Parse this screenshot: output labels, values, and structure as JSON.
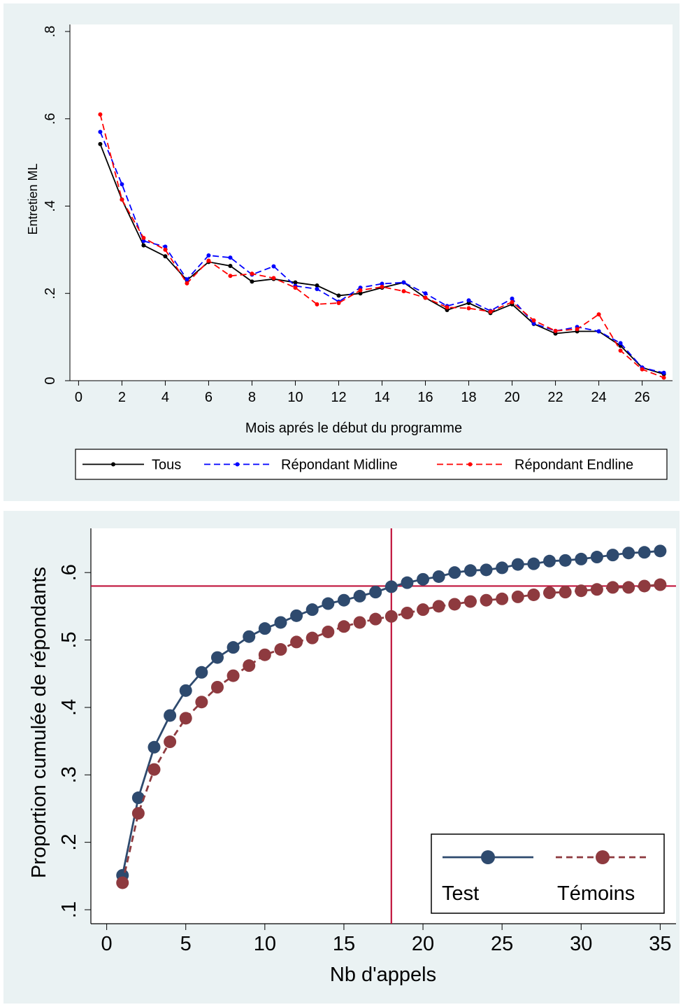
{
  "chart_data": [
    {
      "type": "line",
      "title": "",
      "xlabel": "Mois aprés le début du programme",
      "ylabel": "Entretien ML",
      "xlim": [
        -0.4,
        27.4
      ],
      "ylim": [
        0,
        0.8
      ],
      "xticks": [
        0,
        2,
        4,
        6,
        8,
        10,
        12,
        14,
        16,
        18,
        20,
        22,
        24,
        26
      ],
      "xtick_labels": [
        "0",
        "2",
        "4",
        "6",
        "8",
        "10",
        "12",
        "14",
        "16",
        "18",
        "20",
        "22",
        "24",
        "26"
      ],
      "yticks": [
        0,
        0.2,
        0.4,
        0.6,
        0.8
      ],
      "ytick_labels": [
        "0",
        ".2",
        ".4",
        ".6",
        ".8"
      ],
      "grid": false,
      "legend_position": "bottom",
      "x": [
        1,
        2,
        3,
        4,
        5,
        6,
        7,
        8,
        9,
        10,
        11,
        12,
        13,
        14,
        15,
        16,
        17,
        18,
        19,
        20,
        21,
        22,
        23,
        24,
        25,
        26,
        27
      ],
      "series": [
        {
          "name": "Tous",
          "color": "#000000",
          "dash": "solid",
          "values": [
            0.542,
            0.415,
            0.31,
            0.285,
            0.23,
            0.272,
            0.263,
            0.227,
            0.233,
            0.225,
            0.218,
            0.195,
            0.2,
            0.213,
            0.225,
            0.19,
            0.162,
            0.178,
            0.155,
            0.175,
            0.13,
            0.108,
            0.113,
            0.113,
            0.08,
            0.03,
            0.015
          ]
        },
        {
          "name": "Répondant Midline",
          "color": "#0000ff",
          "dash": "dashed",
          "values": [
            0.57,
            0.45,
            0.32,
            0.307,
            0.232,
            0.287,
            0.282,
            0.243,
            0.262,
            0.217,
            0.21,
            0.181,
            0.213,
            0.222,
            0.225,
            0.2,
            0.171,
            0.184,
            0.16,
            0.188,
            0.131,
            0.114,
            0.123,
            0.113,
            0.086,
            0.03,
            0.018
          ]
        },
        {
          "name": "Répondant Endline",
          "color": "#ff0000",
          "dash": "dashed",
          "values": [
            0.61,
            0.415,
            0.327,
            0.3,
            0.223,
            0.275,
            0.24,
            0.245,
            0.235,
            0.213,
            0.175,
            0.178,
            0.207,
            0.215,
            0.205,
            0.19,
            0.168,
            0.166,
            0.158,
            0.18,
            0.138,
            0.114,
            0.118,
            0.152,
            0.069,
            0.026,
            0.007
          ]
        }
      ]
    },
    {
      "type": "line",
      "title": "",
      "xlabel": "Nb d'appels",
      "ylabel": "Proportion cumulée de répondants",
      "xlim": [
        -1,
        36
      ],
      "ylim": [
        0.1,
        0.65
      ],
      "xticks": [
        0,
        5,
        10,
        15,
        20,
        25,
        30,
        35
      ],
      "xtick_labels": [
        "0",
        "5",
        "10",
        "15",
        "20",
        "25",
        "30",
        "35"
      ],
      "yticks": [
        0.1,
        0.2,
        0.3,
        0.4,
        0.5,
        0.6
      ],
      "ytick_labels": [
        ".1",
        ".2",
        ".3",
        ".4",
        ".5",
        ".6"
      ],
      "grid": false,
      "legend_position": "bottom-right",
      "reference_lines": {
        "x": 18,
        "y": 0.58,
        "color": "#c0143c"
      },
      "x": [
        1,
        2,
        3,
        4,
        5,
        6,
        7,
        8,
        9,
        10,
        11,
        12,
        13,
        14,
        15,
        16,
        17,
        18,
        19,
        20,
        21,
        22,
        23,
        24,
        25,
        26,
        27,
        28,
        29,
        30,
        31,
        32,
        33,
        34,
        35
      ],
      "series": [
        {
          "name": "Test",
          "color": "#2e4a6e",
          "dash": "solid",
          "values": [
            0.151,
            0.266,
            0.341,
            0.388,
            0.425,
            0.452,
            0.474,
            0.489,
            0.505,
            0.517,
            0.526,
            0.536,
            0.545,
            0.554,
            0.559,
            0.565,
            0.571,
            0.579,
            0.585,
            0.59,
            0.594,
            0.6,
            0.603,
            0.604,
            0.607,
            0.612,
            0.613,
            0.617,
            0.618,
            0.62,
            0.623,
            0.626,
            0.629,
            0.63,
            0.632
          ]
        },
        {
          "name": "Témoins",
          "color": "#8e3a3f",
          "dash": "dashed",
          "values": [
            0.14,
            0.243,
            0.308,
            0.349,
            0.384,
            0.408,
            0.43,
            0.447,
            0.462,
            0.478,
            0.486,
            0.497,
            0.503,
            0.512,
            0.52,
            0.526,
            0.531,
            0.535,
            0.54,
            0.545,
            0.55,
            0.553,
            0.557,
            0.559,
            0.561,
            0.564,
            0.567,
            0.57,
            0.571,
            0.573,
            0.575,
            0.578,
            0.578,
            0.58,
            0.582
          ]
        }
      ]
    }
  ]
}
